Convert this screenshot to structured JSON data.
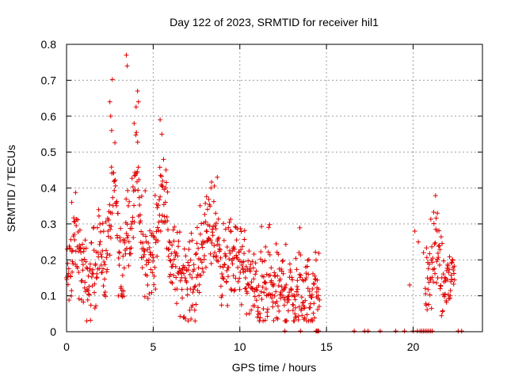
{
  "chart_data": {
    "type": "scatter",
    "title": "Day 122 of 2023, SRMTID for receiver hil1",
    "xlabel": "GPS time / hours",
    "ylabel": "SRMTID / TECUs",
    "xlim": [
      0,
      24
    ],
    "ylim": [
      0,
      0.8
    ],
    "x_ticks": [
      0,
      5,
      10,
      15,
      20
    ],
    "x_tick_labels": [
      "0",
      "5",
      "10",
      "15",
      "20"
    ],
    "y_ticks": [
      0,
      0.1,
      0.2,
      0.3,
      0.4,
      0.5,
      0.6,
      0.7,
      0.8
    ],
    "y_tick_labels": [
      "0",
      "0.1",
      "0.2",
      "0.3",
      "0.4",
      "0.5",
      "0.6",
      "0.7",
      "0.8"
    ],
    "grid": true,
    "marker": "+",
    "series": [
      {
        "name": "SRMTID",
        "color": "#e00000",
        "envelope": [
          {
            "x": 0.0,
            "y": 0.14
          },
          {
            "x": 0.3,
            "y": 0.18
          },
          {
            "x": 0.5,
            "y": 0.27
          },
          {
            "x": 0.7,
            "y": 0.22
          },
          {
            "x": 1.0,
            "y": 0.15
          },
          {
            "x": 1.3,
            "y": 0.13
          },
          {
            "x": 1.7,
            "y": 0.2
          },
          {
            "x": 2.0,
            "y": 0.22
          },
          {
            "x": 2.3,
            "y": 0.2
          },
          {
            "x": 2.5,
            "y": 0.3
          },
          {
            "x": 2.8,
            "y": 0.42
          },
          {
            "x": 3.0,
            "y": 0.22
          },
          {
            "x": 3.2,
            "y": 0.14
          },
          {
            "x": 3.5,
            "y": 0.35
          },
          {
            "x": 3.7,
            "y": 0.24
          },
          {
            "x": 4.0,
            "y": 0.5
          },
          {
            "x": 4.3,
            "y": 0.25
          },
          {
            "x": 4.5,
            "y": 0.19
          },
          {
            "x": 5.0,
            "y": 0.2
          },
          {
            "x": 5.3,
            "y": 0.34
          },
          {
            "x": 5.6,
            "y": 0.4
          },
          {
            "x": 6.0,
            "y": 0.2
          },
          {
            "x": 6.5,
            "y": 0.17
          },
          {
            "x": 7.0,
            "y": 0.15
          },
          {
            "x": 7.5,
            "y": 0.14
          },
          {
            "x": 8.0,
            "y": 0.27
          },
          {
            "x": 8.5,
            "y": 0.3
          },
          {
            "x": 9.0,
            "y": 0.18
          },
          {
            "x": 9.5,
            "y": 0.2
          },
          {
            "x": 10.0,
            "y": 0.2
          },
          {
            "x": 10.5,
            "y": 0.14
          },
          {
            "x": 11.0,
            "y": 0.1
          },
          {
            "x": 11.5,
            "y": 0.11
          },
          {
            "x": 12.0,
            "y": 0.11
          },
          {
            "x": 12.5,
            "y": 0.12
          },
          {
            "x": 13.0,
            "y": 0.1
          },
          {
            "x": 13.5,
            "y": 0.11
          },
          {
            "x": 14.0,
            "y": 0.1
          },
          {
            "x": 14.5,
            "y": 0.12
          },
          {
            "x": 21.0,
            "y": 0.14
          },
          {
            "x": 21.3,
            "y": 0.26
          },
          {
            "x": 21.6,
            "y": 0.12
          },
          {
            "x": 22.0,
            "y": 0.14
          },
          {
            "x": 22.4,
            "y": 0.17
          }
        ],
        "gaps": [
          [
            14.6,
            20.7
          ]
        ],
        "outliers": [
          {
            "x": 3.45,
            "y": 0.77
          },
          {
            "x": 3.5,
            "y": 0.74
          },
          {
            "x": 2.5,
            "y": 0.64
          },
          {
            "x": 2.55,
            "y": 0.6
          },
          {
            "x": 4.1,
            "y": 0.67
          },
          {
            "x": 4.15,
            "y": 0.64
          },
          {
            "x": 3.9,
            "y": 0.58
          },
          {
            "x": 5.4,
            "y": 0.59
          },
          {
            "x": 5.5,
            "y": 0.55
          },
          {
            "x": 2.6,
            "y": 0.56
          },
          {
            "x": 8.7,
            "y": 0.43
          },
          {
            "x": 0.3,
            "y": 0.36
          },
          {
            "x": 19.8,
            "y": 0.13
          },
          {
            "x": 20.1,
            "y": 0.28
          },
          {
            "x": 20.3,
            "y": 0.25
          },
          {
            "x": 20.6,
            "y": 0.22
          },
          {
            "x": 21.4,
            "y": 0.33
          },
          {
            "x": 12.6,
            "y": 0.03
          },
          {
            "x": 13.2,
            "y": 0.04
          }
        ],
        "zero_x": [
          12.6,
          13.5,
          14.4,
          14.45,
          14.5,
          14.55,
          16.6,
          17.2,
          17.4,
          18.1,
          19.0,
          19.5,
          20.0,
          20.25,
          20.4,
          20.5,
          20.6,
          20.7,
          20.8,
          20.9,
          21.0,
          21.1,
          22.6,
          22.8
        ]
      }
    ]
  }
}
